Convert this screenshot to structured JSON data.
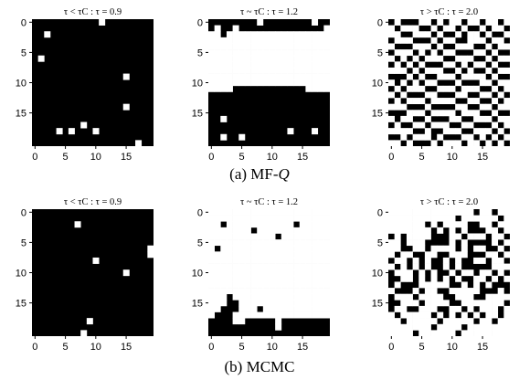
{
  "rows": [
    {
      "caption_prefix": "(a) MF-",
      "caption_var": "Q",
      "panels": [
        {
          "title": "τ < τC : τ = 0.9",
          "xticks": [
            "0",
            "5",
            "10",
            "15"
          ],
          "yticks": [
            "0",
            "5",
            "10",
            "15"
          ],
          "grid": [
            "00000000000100000000",
            "00000000000000000000",
            "00100000000000000000",
            "00000000000000000000",
            "00000000000000000000",
            "00000000000000000000",
            "01000000000000000000",
            "00000000000000000000",
            "00000000000000000000",
            "00000000000000010000",
            "00000000000000000000",
            "00000000000000000000",
            "00000000000000000000",
            "00000000000000000000",
            "00000000000000010000",
            "00000000000000000000",
            "00000000000000000000",
            "00000000100000000000",
            "00001010001000000000",
            "00000000000000000000",
            "00000000000000000100"
          ]
        },
        {
          "title": "τ ~ τC : τ = 1.2",
          "xticks": [
            "0",
            "5",
            "10",
            "15"
          ],
          "yticks": [
            "0",
            "5",
            "10",
            "15"
          ],
          "grid": [
            "00000000100000000100",
            "01001000000000000001",
            "11011111111111111111",
            "11111111111111111111",
            "11111111111111111111",
            "11111111111111111111",
            "11111111111111111111",
            "11111111111111111111",
            "11111111111111111111",
            "11111111111111111111",
            "11111111111111111111",
            "11110000000000001111",
            "00000000000000000000",
            "00000000000000000000",
            "00000000000000000000",
            "00000000000000000000",
            "00100000000000000000",
            "00000000000000000000",
            "00000000000001000100",
            "00100100000000000000",
            "00000000000000000000"
          ]
        },
        {
          "title": "τ > τC : τ = 2.0",
          "xticks": [
            "0",
            "5",
            "10",
            "15"
          ],
          "yticks": [
            "0",
            "5",
            "10",
            "15"
          ],
          "grid": [
            "01000110101101101101",
            "10111001011010010110",
            "11001110100101101001",
            "01110001011001110110",
            "10001110100111001011",
            "01110101011000110100",
            "10101011100111001011",
            "01010100011010110100",
            "11101011100101001011",
            "00010100111011110100",
            "10101011000100011011",
            "01011100111011100101",
            "10100011000110011010",
            "01011101111001100101",
            "11100010000110011011",
            "00011101111011100100",
            "10110010001100111011",
            "01001101110011000101",
            "11110010011100111010",
            "00101110100011010101",
            "11010001011101101010"
          ]
        }
      ]
    },
    {
      "caption_prefix": "(b) MCMC",
      "caption_var": "",
      "panels": [
        {
          "title": "τ < τC : τ = 0.9",
          "xticks": [
            "0",
            "5",
            "10",
            "15"
          ],
          "yticks": [
            "0",
            "5",
            "10",
            "15"
          ],
          "grid": [
            "00000000000000000000",
            "00000000000000000000",
            "00000001000000000000",
            "00000000000000000000",
            "00000000000000000000",
            "00000000000000000000",
            "00000000000000000001",
            "00000000000000000001",
            "00000000001000000000",
            "00000000000000000000",
            "00000000000000010000",
            "00000000000000000000",
            "00000000000000000000",
            "00000000000000000000",
            "00000000000000000000",
            "00000000000000000000",
            "00000000000000000000",
            "00000000000000000000",
            "00000000010000000000",
            "00000000000000000000",
            "00000000100000000000"
          ]
        },
        {
          "title": "τ ~ τC : τ = 1.2",
          "xticks": [
            "0",
            "5",
            "10",
            "15"
          ],
          "yticks": [
            "0",
            "5",
            "10",
            "15"
          ],
          "grid": [
            "11111111111111111111",
            "11111111111111111111",
            "11011111111111011111",
            "11111110111111111111",
            "11111111111011111111",
            "11111111111111111111",
            "10111111111111111111",
            "11111111111111111111",
            "11111111111111111111",
            "11111111111111111111",
            "11111111111111111111",
            "11111111111111111111",
            "11111111111111111111",
            "11111111111111111111",
            "11101111111111111111",
            "11100111111111111111",
            "11000111011111111111",
            "10001111111111111111",
            "00001100000100000000",
            "00000000000100000000",
            "00000000000000000000"
          ]
        },
        {
          "title": "τ > τC : τ = 2.0",
          "xticks": [
            "0",
            "5",
            "10",
            "15"
          ],
          "yticks": [
            "0",
            "5",
            "10",
            "15"
          ],
          "grid": [
            "11111111111111011011",
            "11111111111011111101",
            "11111101011110011011",
            "11111110101010001101",
            "01011110001101110110",
            "11011100001010000101",
            "11001101111010110010",
            "10110011001110001101",
            "01101010010100110110",
            "10101010010100000111",
            "01110101001011011010",
            "00110101010100110101",
            "01000111110010101000",
            "10001011001111100010",
            "01110111100111001111",
            "00111011110011111110",
            "01100111001101011101",
            "10111110101010101101",
            "11011111011111011011",
            "11111110111101111111",
            "11110111111011111111"
          ]
        }
      ]
    }
  ]
}
